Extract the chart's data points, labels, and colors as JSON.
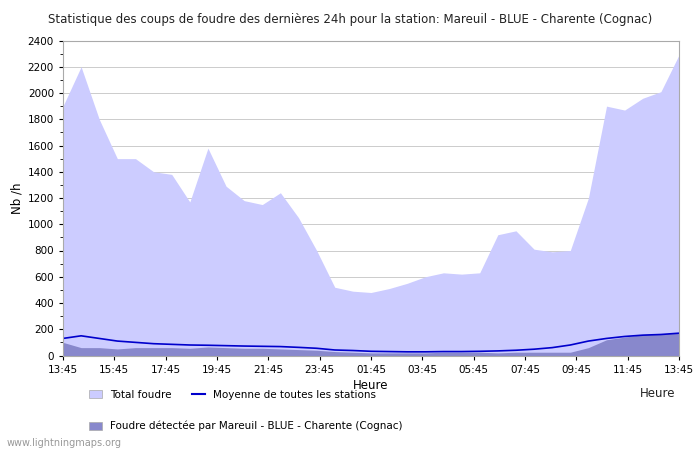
{
  "title": "Statistique des coups de foudre des dernières 24h pour la station: Mareuil - BLUE - Charente (Cognac)",
  "xlabel": "Heure",
  "ylabel": "Nb /h",
  "ylim": [
    0,
    2400
  ],
  "yticks": [
    0,
    200,
    400,
    600,
    800,
    1000,
    1200,
    1400,
    1600,
    1800,
    2000,
    2200,
    2400
  ],
  "xtick_labels": [
    "13:45",
    "15:45",
    "17:45",
    "19:45",
    "21:45",
    "23:45",
    "01:45",
    "03:45",
    "05:45",
    "07:45",
    "09:45",
    "11:45",
    "13:45"
  ],
  "background_color": "#ffffff",
  "plot_bg_color": "#ffffff",
  "grid_color": "#cccccc",
  "fill_total_color": "#ccccff",
  "fill_station_color": "#8888cc",
  "line_color": "#0000cc",
  "watermark": "www.lightningmaps.org",
  "legend_total": "Total foudre",
  "legend_moyenne": "Moyenne de toutes les stations",
  "legend_station": "Foudre détectée par Mareuil - BLUE - Charente (Cognac)",
  "total_foudre": [
    1900,
    2200,
    1800,
    1500,
    1500,
    1400,
    1380,
    1170,
    1580,
    1290,
    1180,
    1150,
    1240,
    1050,
    800,
    520,
    490,
    480,
    510,
    550,
    600,
    630,
    620,
    630,
    920,
    950,
    810,
    790,
    800,
    1200,
    1900,
    1870,
    1960,
    2010,
    2290
  ],
  "station_foudre": [
    100,
    60,
    60,
    50,
    60,
    60,
    60,
    55,
    65,
    60,
    55,
    55,
    50,
    45,
    40,
    30,
    25,
    20,
    20,
    20,
    20,
    25,
    25,
    25,
    20,
    25,
    25,
    25,
    25,
    60,
    120,
    140,
    160,
    165,
    175
  ],
  "moyenne_line": [
    130,
    150,
    130,
    110,
    100,
    90,
    85,
    80,
    78,
    75,
    72,
    70,
    68,
    62,
    55,
    42,
    38,
    32,
    30,
    28,
    28,
    30,
    30,
    32,
    35,
    40,
    48,
    60,
    80,
    110,
    130,
    145,
    155,
    160,
    170
  ]
}
